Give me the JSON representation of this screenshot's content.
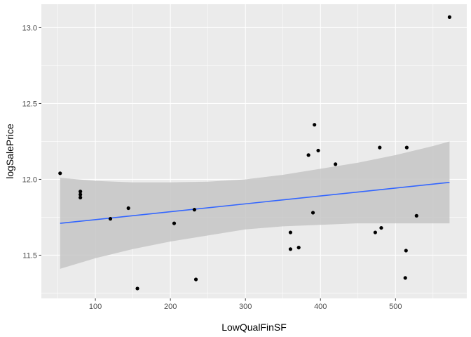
{
  "chart_data": {
    "type": "scatter",
    "title": "",
    "xlabel": "LowQualFinSF",
    "ylabel": "logSalePrice",
    "xlim": [
      28,
      595
    ],
    "ylim": [
      11.215,
      13.155
    ],
    "x_ticks": [
      100,
      200,
      300,
      400,
      500
    ],
    "y_ticks": [
      11.5,
      12.0,
      12.5,
      13.0
    ],
    "x_tick_labels": [
      "100",
      "200",
      "300",
      "400",
      "500"
    ],
    "y_tick_labels": [
      "11.5",
      "12.0",
      "12.5",
      "13.0"
    ],
    "grid": true,
    "points": [
      {
        "x": 53,
        "y": 12.04
      },
      {
        "x": 80,
        "y": 11.92
      },
      {
        "x": 80,
        "y": 11.9
      },
      {
        "x": 80,
        "y": 11.88
      },
      {
        "x": 120,
        "y": 11.74
      },
      {
        "x": 144,
        "y": 11.81
      },
      {
        "x": 156,
        "y": 11.28
      },
      {
        "x": 205,
        "y": 11.71
      },
      {
        "x": 232,
        "y": 11.8
      },
      {
        "x": 234,
        "y": 11.34
      },
      {
        "x": 360,
        "y": 11.65
      },
      {
        "x": 360,
        "y": 11.54
      },
      {
        "x": 371,
        "y": 11.55
      },
      {
        "x": 384,
        "y": 12.16
      },
      {
        "x": 390,
        "y": 11.78
      },
      {
        "x": 392,
        "y": 12.36
      },
      {
        "x": 397,
        "y": 12.19
      },
      {
        "x": 420,
        "y": 12.1
      },
      {
        "x": 473,
        "y": 11.65
      },
      {
        "x": 479,
        "y": 12.21
      },
      {
        "x": 481,
        "y": 11.68
      },
      {
        "x": 513,
        "y": 11.35
      },
      {
        "x": 514,
        "y": 11.53
      },
      {
        "x": 515,
        "y": 12.21
      },
      {
        "x": 528,
        "y": 11.76
      },
      {
        "x": 572,
        "y": 13.07
      }
    ],
    "trend": {
      "name": "linear fit",
      "x": [
        53,
        572
      ],
      "y": [
        11.71,
        11.98
      ]
    },
    "confidence_band": {
      "x": [
        53,
        100,
        150,
        200,
        250,
        300,
        350,
        400,
        450,
        500,
        550,
        572
      ],
      "upper": [
        12.01,
        11.99,
        11.98,
        11.98,
        11.985,
        12.0,
        12.03,
        12.07,
        12.11,
        12.16,
        12.22,
        12.25
      ],
      "lower": [
        11.41,
        11.48,
        11.54,
        11.59,
        11.63,
        11.67,
        11.69,
        11.7,
        11.71,
        11.71,
        11.71,
        11.71
      ]
    },
    "colors": {
      "panel": "#ebebeb",
      "grid_major": "#ffffff",
      "band": "#c6c6c6",
      "line": "#3366ff",
      "points": "#000000"
    }
  }
}
